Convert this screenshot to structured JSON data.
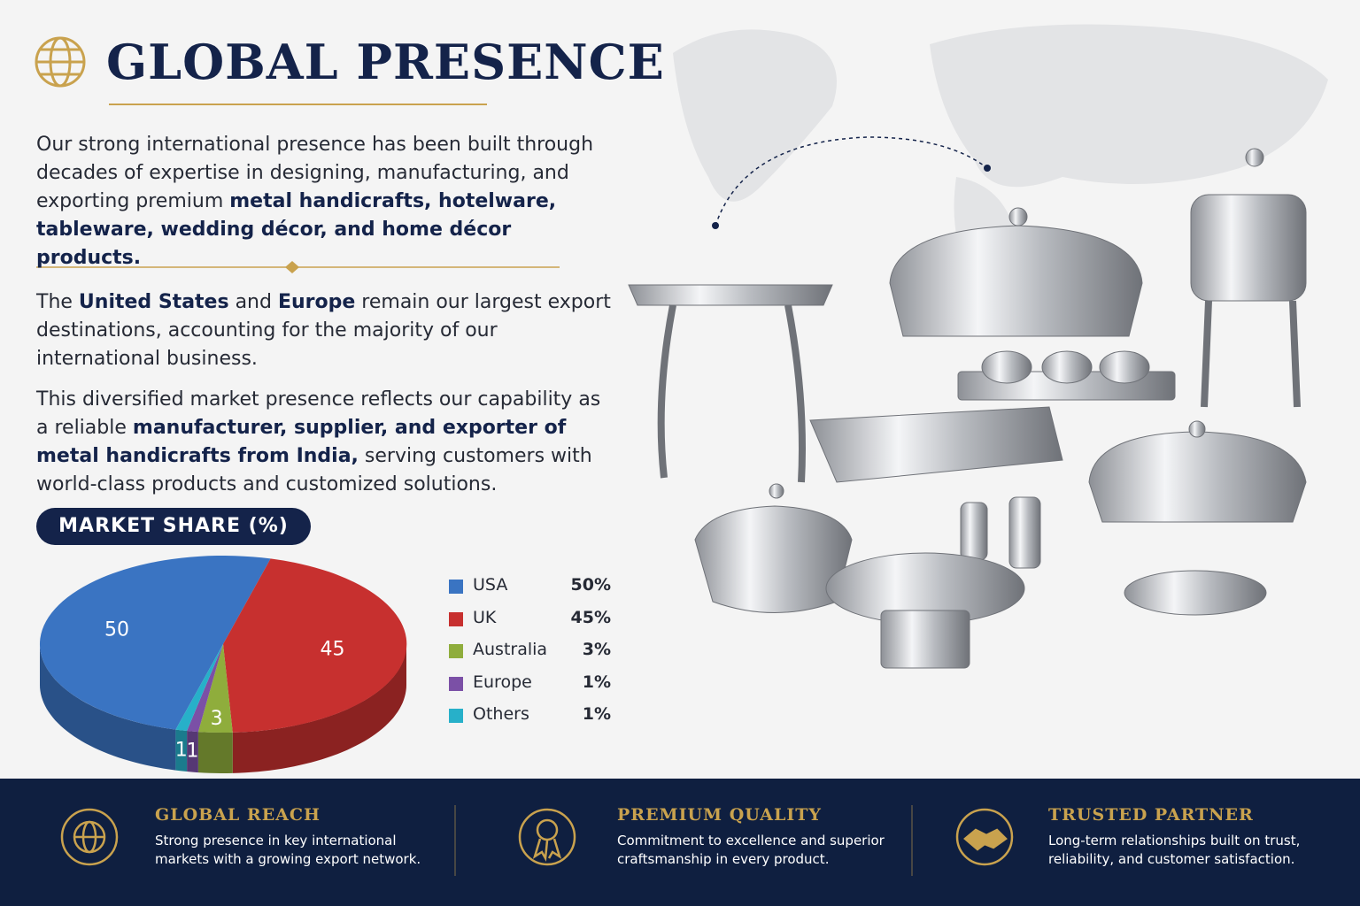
{
  "header": {
    "title": "GLOBAL PRESENCE"
  },
  "paragraphs": [
    [
      {
        "text": "Our strong international presence has been built through decades of expertise in designing, manufacturing, and exporting premium ",
        "bold": false
      },
      {
        "text": "metal handicrafts, hotelware, tableware, wedding décor, and home décor products.",
        "bold": true
      }
    ],
    [
      {
        "text": "The ",
        "bold": false
      },
      {
        "text": "United States",
        "bold": true
      },
      {
        "text": " and ",
        "bold": false
      },
      {
        "text": "Europe",
        "bold": true
      },
      {
        "text": " remain our largest export destinations, accounting for the majority of our international business.",
        "bold": false
      }
    ],
    [
      {
        "text": "This diversified market presence reflects our capability as a reliable ",
        "bold": false
      },
      {
        "text": "manufacturer, supplier, and exporter of metal handicrafts from India,",
        "bold": true
      },
      {
        "text": " serving customers with world-class products and customized solutions.",
        "bold": false
      }
    ]
  ],
  "chart_data": {
    "type": "pie",
    "title": "MARKET SHARE (%)",
    "categories": [
      "USA",
      "UK",
      "Australia",
      "Europe",
      "Others"
    ],
    "values": [
      50,
      45,
      3,
      1,
      1
    ],
    "value_labels": [
      "50%",
      "45%",
      "3%",
      "1%",
      "1%"
    ],
    "colors": [
      "#3a74c2",
      "#c7302f",
      "#8fad3c",
      "#7b50a6",
      "#27b0c9"
    ]
  },
  "features": [
    {
      "title": "GLOBAL REACH",
      "text": "Strong presence in key international markets with a growing export network."
    },
    {
      "title": "PREMIUM QUALITY",
      "text": "Commitment to excellence and superior craftsmanship in every product."
    },
    {
      "title": "TRUSTED PARTNER",
      "text": "Long-term relationships built on trust, reliability, and customer satisfaction."
    }
  ]
}
